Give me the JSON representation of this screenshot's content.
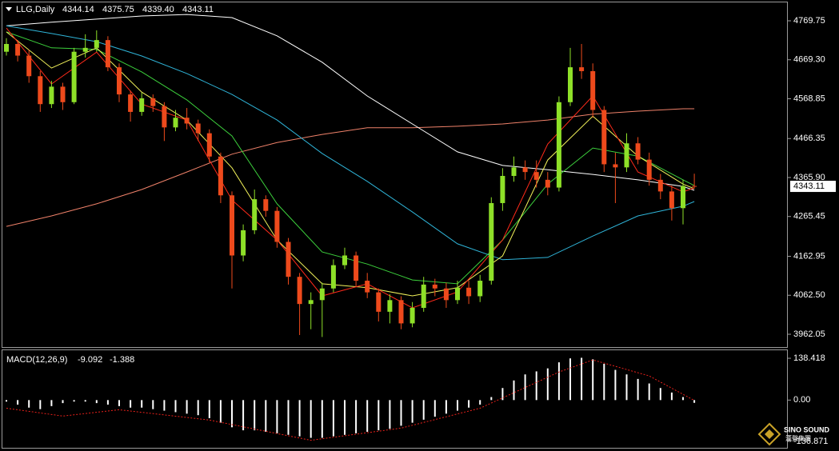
{
  "chart_data": [
    {
      "type": "candlestick",
      "title": "LLG,Daily",
      "header_labels": [
        "4344.14",
        "4375.75",
        "4339.40",
        "4343.11"
      ],
      "up_color": "#8ee028",
      "down_color": "#ee4a1c",
      "open": [
        4690,
        4710,
        4680,
        4627,
        4555,
        4600,
        4560,
        4690,
        4700,
        4720,
        4650,
        4580,
        4535,
        4570,
        4550,
        4495,
        4520,
        4505,
        4480,
        4420,
        4320,
        4165,
        4230,
        4310,
        4280,
        4200,
        4110,
        4040,
        4050,
        4080,
        4140,
        4165,
        4100,
        4070,
        4020,
        4050,
        3990,
        4030,
        4090,
        4080,
        4050,
        4082,
        4060,
        4100,
        4300,
        4370,
        4392,
        4380,
        4360,
        4340,
        4560,
        4650,
        4640,
        4540,
        4400,
        4392,
        4454,
        4412,
        4360,
        4330,
        4287,
        4344.14
      ],
      "high": [
        4725,
        4720,
        4695,
        4640,
        4615,
        4610,
        4700,
        4735,
        4745,
        4730,
        4660,
        4590,
        4585,
        4580,
        4560,
        4540,
        4545,
        4515,
        4490,
        4430,
        4330,
        4245,
        4335,
        4320,
        4290,
        4210,
        4120,
        4070,
        4095,
        4155,
        4185,
        4175,
        4120,
        4080,
        4065,
        4060,
        4045,
        4110,
        4105,
        4095,
        4100,
        4100,
        4115,
        4315,
        4390,
        4420,
        4410,
        4410,
        4380,
        4575,
        4700,
        4710,
        4660,
        4550,
        4430,
        4480,
        4470,
        4430,
        4375,
        4345,
        4360,
        4375.75
      ],
      "low": [
        4680,
        4665,
        4610,
        4535,
        4545,
        4540,
        4555,
        4675,
        4690,
        4640,
        4560,
        4510,
        4525,
        4535,
        4460,
        4485,
        4490,
        4460,
        4405,
        4300,
        4080,
        4150,
        4220,
        4265,
        4185,
        4090,
        3960,
        3975,
        3955,
        4070,
        4130,
        4085,
        4055,
        3995,
        3990,
        3975,
        3980,
        4020,
        4060,
        4030,
        4040,
        4040,
        4045,
        4090,
        4280,
        4355,
        4360,
        4340,
        4320,
        4330,
        4550,
        4620,
        4520,
        4380,
        4300,
        4380,
        4400,
        4345,
        4310,
        4255,
        4245,
        4339.4
      ],
      "close": [
        4710,
        4680,
        4627,
        4555,
        4600,
        4560,
        4690,
        4700,
        4720,
        4650,
        4580,
        4535,
        4570,
        4550,
        4495,
        4520,
        4505,
        4480,
        4420,
        4320,
        4165,
        4230,
        4310,
        4280,
        4200,
        4110,
        4040,
        4050,
        4080,
        4140,
        4165,
        4100,
        4070,
        4020,
        4050,
        3990,
        4030,
        4090,
        4080,
        4050,
        4082,
        4060,
        4100,
        4300,
        4370,
        4392,
        4380,
        4360,
        4340,
        4560,
        4650,
        4640,
        4540,
        4400,
        4392,
        4454,
        4412,
        4360,
        4330,
        4287,
        4344.14,
        4343.11
      ],
      "series": [
        {
          "color": "#f0826a",
          "x": [
            0,
            4,
            8,
            12,
            16,
            20,
            24,
            28,
            32,
            36,
            40,
            44,
            48,
            52,
            56,
            60,
            61
          ],
          "values": [
            4240,
            4267,
            4298,
            4335,
            4380,
            4426,
            4456,
            4477,
            4494,
            4494,
            4498,
            4504,
            4514,
            4529,
            4537,
            4543,
            4543
          ]
        },
        {
          "color": "#ffffff",
          "x": [
            0,
            4,
            8,
            12,
            16,
            20,
            24,
            28,
            32,
            36,
            40,
            44,
            48,
            52,
            56,
            60,
            61
          ],
          "values": [
            4757,
            4766,
            4774,
            4782,
            4786,
            4778,
            4731,
            4663,
            4576,
            4504,
            4432,
            4397,
            4386,
            4374,
            4360,
            4343,
            4333
          ]
        },
        {
          "color": "#2fb4d8",
          "x": [
            0,
            4,
            8,
            12,
            16,
            20,
            24,
            28,
            32,
            36,
            40,
            44,
            48,
            52,
            56,
            60,
            61
          ],
          "values": [
            4757,
            4737,
            4716,
            4679,
            4634,
            4580,
            4514,
            4428,
            4356,
            4277,
            4195,
            4154,
            4160,
            4215,
            4267,
            4292,
            4304
          ]
        },
        {
          "color": "#3ccf3c",
          "x": [
            0,
            4,
            8,
            12,
            16,
            20,
            24,
            28,
            32,
            36,
            40,
            44,
            48,
            52,
            56,
            60,
            61
          ],
          "values": [
            4741,
            4700,
            4696,
            4638,
            4566,
            4473,
            4298,
            4174,
            4143,
            4102,
            4092,
            4205,
            4349,
            4442,
            4421,
            4360,
            4345
          ]
        },
        {
          "color": "#f2f25a",
          "x": [
            0,
            4,
            8,
            12,
            16,
            20,
            24,
            28,
            32,
            36,
            40,
            44,
            48,
            52,
            56,
            60,
            61
          ],
          "values": [
            4741,
            4648,
            4700,
            4586,
            4514,
            4391,
            4205,
            4092,
            4082,
            4061,
            4082,
            4164,
            4411,
            4524,
            4421,
            4349,
            4337
          ]
        },
        {
          "color": "#ff2a1a",
          "x": [
            0,
            4,
            8,
            12,
            16,
            20,
            24,
            28,
            32,
            36,
            40,
            44,
            48,
            52,
            56,
            60,
            61
          ],
          "values": [
            4751,
            4607,
            4689,
            4555,
            4514,
            4308,
            4205,
            4061,
            4092,
            4030,
            4071,
            4205,
            4452,
            4576,
            4380,
            4329,
            4339
          ]
        }
      ],
      "ylim": [
        3927,
        4813
      ],
      "yticks": [
        {
          "value": 4769.75,
          "label": "4769.75"
        },
        {
          "value": 4669.3,
          "label": "4669.30"
        },
        {
          "value": 4568.85,
          "label": "4568.85"
        },
        {
          "value": 4466.35,
          "label": "4466.35"
        },
        {
          "value": 4365.9,
          "label": "4365.90"
        },
        {
          "value": 4265.45,
          "label": "4265.45"
        },
        {
          "value": 4162.95,
          "label": "4162.95"
        },
        {
          "value": 4062.5,
          "label": "4062.50"
        },
        {
          "value": 3962.05,
          "label": "3962.05"
        }
      ]
    },
    {
      "type": "bar",
      "title": "MACD(12,26,9)",
      "color": "#ffffff",
      "values": [
        -5,
        -15,
        -25,
        -30,
        -20,
        -10,
        -5,
        -5,
        -10,
        -15,
        -20,
        -25,
        -25,
        -30,
        -35,
        -40,
        -45,
        -50,
        -60,
        -75,
        -90,
        -100,
        -100,
        -105,
        -110,
        -115,
        -120,
        -125,
        -125,
        -120,
        -115,
        -110,
        -105,
        -100,
        -95,
        -85,
        -75,
        -65,
        -55,
        -45,
        -35,
        -25,
        -15,
        10,
        40,
        65,
        85,
        95,
        105,
        125,
        138,
        140,
        135,
        120,
        100,
        85,
        70,
        55,
        40,
        25,
        10,
        -9.092
      ],
      "signal": {
        "color": "#e8201a",
        "x": [
          0,
          5,
          10,
          18,
          27,
          35,
          42,
          49,
          52,
          57,
          61
        ],
        "values": [
          -27,
          -53,
          -32,
          -66,
          -133,
          -93,
          -27,
          93,
          133,
          80,
          -1.388
        ]
      },
      "ylim": [
        -158,
        165
      ],
      "yticks": [
        138.418,
        {
          "value": 0,
          "label": "0.00"
        },
        -136.871
      ],
      "watermark": "SINO SOUND",
      "watermark_sub": "漢聲集團"
    }
  ]
}
